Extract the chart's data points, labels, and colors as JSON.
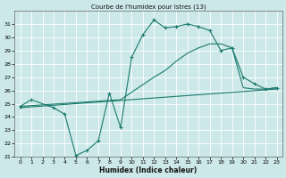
{
  "title": "Courbe de l'humidex pour Istres (13)",
  "xlabel": "Humidex (Indice chaleur)",
  "xlim": [
    -0.5,
    23.5
  ],
  "ylim": [
    21,
    32
  ],
  "yticks": [
    21,
    22,
    23,
    24,
    25,
    26,
    27,
    28,
    29,
    30,
    31
  ],
  "xticks": [
    0,
    1,
    2,
    3,
    4,
    5,
    6,
    7,
    8,
    9,
    10,
    11,
    12,
    13,
    14,
    15,
    16,
    17,
    18,
    19,
    20,
    21,
    22,
    23
  ],
  "bg_color": "#cde8e8",
  "line_color": "#1a7a6e",
  "grid_color": "#ffffff",
  "line1_x": [
    0,
    1,
    3,
    4,
    5,
    6,
    7,
    8,
    9,
    10,
    11,
    12,
    13,
    14,
    15,
    16,
    17,
    18,
    19,
    20,
    21,
    22,
    23
  ],
  "line1_y": [
    24.8,
    25.3,
    24.7,
    24.2,
    21.1,
    21.5,
    22.2,
    25.8,
    23.2,
    28.5,
    30.2,
    31.3,
    30.7,
    30.8,
    31.0,
    30.8,
    30.5,
    29.0,
    29.2,
    27.0,
    26.5,
    26.1,
    26.2
  ],
  "line2_x": [
    0,
    23
  ],
  "line2_y": [
    24.7,
    26.1
  ],
  "line3_x": [
    0,
    9,
    12,
    13,
    14,
    15,
    16,
    17,
    18,
    19,
    20,
    21,
    22,
    23
  ],
  "line3_y": [
    24.8,
    25.3,
    27.0,
    27.5,
    28.2,
    28.8,
    29.2,
    29.5,
    29.5,
    29.2,
    26.2,
    26.1,
    26.1,
    26.2
  ]
}
